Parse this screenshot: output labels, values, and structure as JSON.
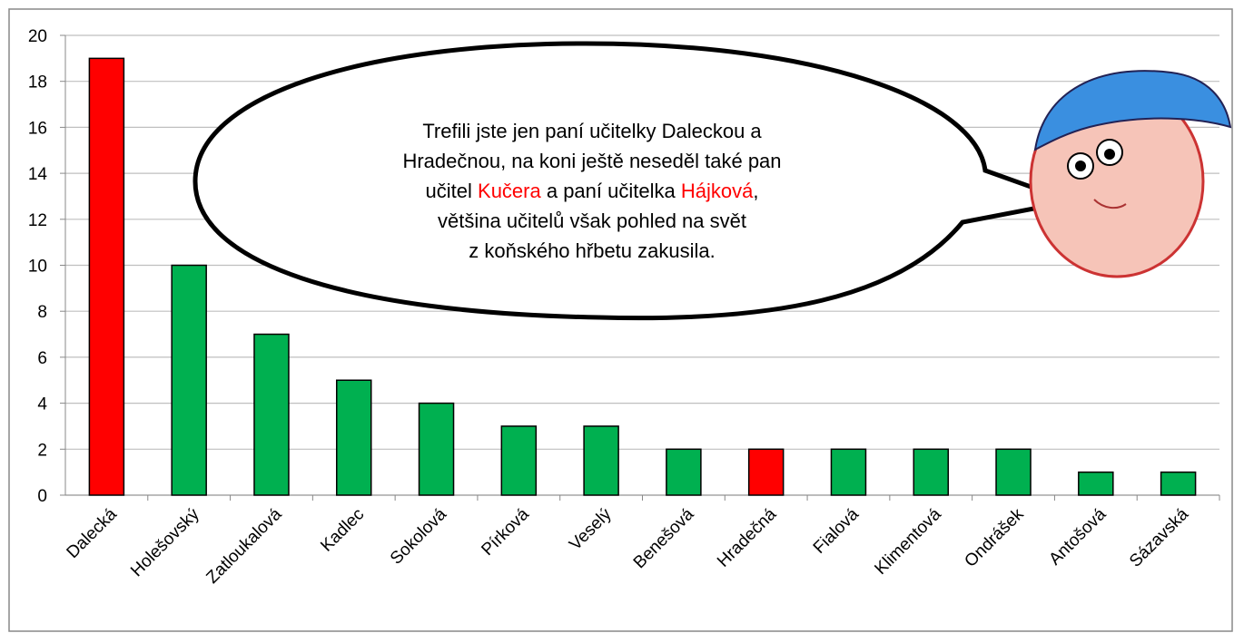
{
  "chart_data": {
    "type": "bar",
    "categories": [
      "Dalecká",
      "Holešovský",
      "Zatloukalová",
      "Kadlec",
      "Sokolová",
      "Pírková",
      "Veselý",
      "Benešová",
      "Hradečná",
      "Fialová",
      "Klimentová",
      "Ondrášek",
      "Antošová",
      "Sázavská"
    ],
    "values": [
      19,
      10,
      7,
      5,
      4,
      3,
      3,
      2,
      2,
      2,
      2,
      2,
      1,
      1
    ],
    "colors": [
      "#ff0000",
      "#00b050",
      "#00b050",
      "#00b050",
      "#00b050",
      "#00b050",
      "#00b050",
      "#00b050",
      "#ff0000",
      "#00b050",
      "#00b050",
      "#00b050",
      "#00b050",
      "#00b050"
    ],
    "ylim": [
      0,
      20
    ],
    "yticks": [
      0,
      2,
      4,
      6,
      8,
      10,
      12,
      14,
      16,
      18,
      20
    ],
    "grid": true,
    "bubble": {
      "highlight_color": "#ff0000",
      "lines": [
        [
          {
            "text": "Trefili jste jen paní učitelky Daleckou a"
          }
        ],
        [
          {
            "text": "Hradečnou, na koni ještě neseděl také pan"
          }
        ],
        [
          {
            "text": "učitel "
          },
          {
            "text": "Kučera",
            "highlight": true
          },
          {
            "text": " a paní učitelka "
          },
          {
            "text": "Hájková",
            "highlight": true
          },
          {
            "text": ","
          }
        ],
        [
          {
            "text": "většina učitelů však pohled na svět"
          }
        ],
        [
          {
            "text": "z koňského hřbetu zakusila."
          }
        ]
      ]
    }
  }
}
